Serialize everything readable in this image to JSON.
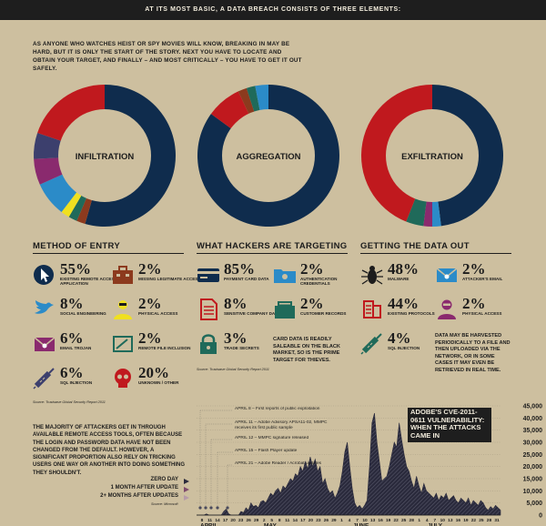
{
  "header": {
    "title": "AT ITS MOST BASIC, A DATA BREACH CONSISTS OF THREE ELEMENTS:"
  },
  "intro": "AS ANYONE WHO WATCHES HEIST OR SPY MOVIES WILL KNOW, BREAKING IN MAY BE HARD, BUT IT IS ONLY THE START OF THE STORY. NEXT YOU HAVE TO LOCATE AND OBTAIN YOUR TARGET, AND FINALLY – AND MOST CRITICALLY – YOU HAVE TO GET IT OUT SAFELY.",
  "columns": [
    {
      "title": "METHOD OF ENTRY",
      "pie_label": "INFILTRATION"
    },
    {
      "title": "WHAT HACKERS ARE TARGETING",
      "pie_label": "AGGREGATION"
    },
    {
      "title": "GETTING THE DATA OUT",
      "pie_label": "EXFILTRATION"
    }
  ],
  "chart_data": [
    {
      "type": "pie",
      "title": "INFILTRATION",
      "slices": [
        {
          "label": "EXISTING REMOTE ACCESS APPLICATION",
          "value": 55,
          "color": "#0f2c4d"
        },
        {
          "label": "MISSING LEGITIMATE ACCESS",
          "value": 2,
          "color": "#8c3a1e"
        },
        {
          "label": "REMOTE FILE INCLUSION",
          "value": 2,
          "color": "#1f6a5a"
        },
        {
          "label": "PHYSICAL ACCESS",
          "value": 2,
          "color": "#f0e020"
        },
        {
          "label": "SOCIAL ENGINEERING",
          "value": 8,
          "color": "#2b8bc8"
        },
        {
          "label": "EMAIL TROJAN",
          "value": 6,
          "color": "#8a2a6e"
        },
        {
          "label": "SQL INJECTION",
          "value": 6,
          "color": "#3c3f6d"
        },
        {
          "label": "UNKNOWN / OTHER",
          "value": 20,
          "color": "#c0191e"
        }
      ]
    },
    {
      "type": "pie",
      "title": "AGGREGATION",
      "slices": [
        {
          "label": "PAYMENT CARD DATA",
          "value": 85,
          "color": "#0f2c4d"
        },
        {
          "label": "SENSITIVE COMPANY DATA",
          "value": 8,
          "color": "#c0191e"
        },
        {
          "label": "AUTHENTICATION CREDENTIALS",
          "value": 2,
          "color": "#8c3a1e"
        },
        {
          "label": "CUSTOMER RECORDS",
          "value": 2,
          "color": "#1f6a5a"
        },
        {
          "label": "TRADE SECRETS",
          "value": 3,
          "color": "#2b8bc8"
        }
      ]
    },
    {
      "type": "pie",
      "title": "EXFILTRATION",
      "slices": [
        {
          "label": "MALWARE",
          "value": 48,
          "color": "#0f2c4d"
        },
        {
          "label": "ATTACKER'S EMAIL",
          "value": 2,
          "color": "#2b8bc8"
        },
        {
          "label": "PHYSICAL ACCESS",
          "value": 2,
          "color": "#8a2a6e"
        },
        {
          "label": "SQL INJECTION",
          "value": 4,
          "color": "#1f6a5a"
        },
        {
          "label": "EXISTING PROTOCOLS",
          "value": 44,
          "color": "#c0191e"
        }
      ]
    },
    {
      "type": "area",
      "title": "ADOBE'S CVE-2011-0611 VULNERABILITY: WHEN THE ATTACKS CAME IN",
      "ylim": [
        0,
        45000
      ],
      "yticks": [
        "0",
        "5,000",
        "10,000",
        "15,000",
        "20,000",
        "25,000",
        "30,000",
        "35,000",
        "40,000",
        "45,000"
      ],
      "xticks": [
        "8",
        "11",
        "14",
        "17",
        "20",
        "23",
        "26",
        "29",
        "2",
        "5",
        "8",
        "11",
        "14",
        "17",
        "20",
        "23",
        "26",
        "29",
        "1",
        "4",
        "7",
        "10",
        "13",
        "16",
        "19",
        "22",
        "25",
        "28",
        "1",
        "4",
        "7",
        "10",
        "13",
        "16",
        "19",
        "22",
        "25",
        "28",
        "31"
      ],
      "months": [
        "APRIL",
        "MAY",
        "JUNE",
        "JULY"
      ],
      "values": [
        0,
        0,
        0,
        0,
        500,
        0,
        0,
        0,
        0,
        0,
        0,
        1500,
        2500,
        500,
        0,
        0,
        0,
        0,
        1500,
        1000,
        3000,
        2000,
        5000,
        3500,
        4000,
        3000,
        5500,
        6000,
        5000,
        7000,
        9000,
        8000,
        10000,
        11000,
        9000,
        12000,
        11000,
        13000,
        15000,
        14000,
        17000,
        16000,
        20000,
        18000,
        22000,
        19000,
        24000,
        20000,
        23000,
        18000,
        20000,
        13000,
        15000,
        11000,
        9000,
        10000,
        7000,
        9000,
        12000,
        18000,
        26000,
        30000,
        20000,
        11000,
        5000,
        3000,
        4000,
        2500,
        4000,
        6000,
        20000,
        38000,
        42000,
        30000,
        22000,
        14000,
        15000,
        16000,
        20000,
        25000,
        30000,
        28000,
        38000,
        31000,
        25000,
        20000,
        18000,
        14000,
        11000,
        16000,
        12000,
        9000,
        13000,
        10000,
        9000,
        8000,
        7000,
        9000,
        6000,
        8000,
        7000,
        9000,
        6000,
        7000,
        8000,
        6000,
        5000,
        7000,
        6000,
        5000,
        7000,
        4000,
        6000,
        5000,
        4000,
        6000,
        5000,
        3000,
        2000,
        3500,
        2500,
        4000,
        3000,
        2000
      ],
      "events": [
        {
          "label": "APRIL 8 – First reports of public exploitation"
        },
        {
          "label": "APRIL 11 – Adobe Advisory APSA11-02, MMPC receives its first public sample"
        },
        {
          "label": "APRIL 12 – MMPC signature released"
        },
        {
          "label": "APRIL 15 – Flash Player update"
        },
        {
          "label": "APRIL 21 – Adobe Reader / Acrobat updates"
        }
      ],
      "legend": [
        {
          "label": "ZERO DAY",
          "color": "#2a2a3c"
        },
        {
          "label": "1 MONTH AFTER UPDATE",
          "color": "#7e4a6c"
        },
        {
          "label": "2+ MONTHS AFTER UPDATES",
          "color": "#b69aa8"
        }
      ]
    }
  ],
  "stats": {
    "entry": [
      {
        "pct": "55%",
        "label": "EXISTING REMOTE ACCESS APPLICATION",
        "icon": "cursor-icon"
      },
      {
        "pct": "2%",
        "label": "MISSING LEGITIMATE ACCESS",
        "icon": "briefcase-icon"
      },
      {
        "pct": "8%",
        "label": "SOCIAL ENGINEERING",
        "icon": "twitter-bird-icon"
      },
      {
        "pct": "2%",
        "label": "PHYSICAL ACCESS",
        "icon": "person-icon"
      },
      {
        "pct": "6%",
        "label": "EMAIL TROJAN",
        "icon": "pirate-envelope-icon"
      },
      {
        "pct": "2%",
        "label": "REMOTE FILE INCLUSION",
        "icon": "terminal-icon"
      },
      {
        "pct": "6%",
        "label": "SQL INJECTION",
        "icon": "syringe-icon"
      },
      {
        "pct": "20%",
        "label": "UNKNOWN / OTHER",
        "icon": "skull-icon"
      }
    ],
    "target": [
      {
        "pct": "85%",
        "label": "PAYMENT CARD DATA",
        "icon": "card-icon"
      },
      {
        "pct": "2%",
        "label": "AUTHENTICATION CREDENTIALS",
        "icon": "folder-icon"
      },
      {
        "pct": "8%",
        "label": "SENSITIVE COMPANY DATA",
        "icon": "document-icon"
      },
      {
        "pct": "2%",
        "label": "CUSTOMER RECORDS",
        "icon": "card-file-icon"
      },
      {
        "pct": "3%",
        "label": "TRADE SECRETS",
        "icon": "padlock-icon"
      }
    ],
    "out": [
      {
        "pct": "48%",
        "label": "MALWARE",
        "icon": "bug-icon"
      },
      {
        "pct": "2%",
        "label": "ATTACKER'S EMAIL",
        "icon": "pirate-envelope-icon"
      },
      {
        "pct": "44%",
        "label": "EXISTING PROTOCOLS",
        "icon": "protocol-icon"
      },
      {
        "pct": "2%",
        "label": "PHYSICAL ACCESS",
        "icon": "masked-person-icon"
      },
      {
        "pct": "4%",
        "label": "SQL INJECTION",
        "icon": "syringe-icon"
      }
    ]
  },
  "notes": {
    "card_data": "CARD DATA IS READILY SALEABLE ON THE BLACK MARKET, SO IS THE PRIME TARGET FOR THIEVES.",
    "harvest": "DATA MAY BE HARVESTED PERIODICALLY TO A FILE AND THEN UPLOADED VIA THE NETWORK, OR IN SOME CASES IT MAY EVEN BE RETRIEVED IN REAL TIME.",
    "story": "THE MAJORITY OF ATTACKERS GET IN THROUGH AVAILABLE REMOTE ACCESS TOOLS, OFTEN BECAUSE THE LOGIN AND PASSWORD DATA HAVE NOT BEEN CHANGED FROM THE DEFAULT. HOWEVER, A SIGNIFICANT PROPORTION ALSO RELY ON TRICKING USERS ONE WAY OR ANOTHER INTO DOING SOMETHING THEY SHOULDN'T.",
    "source1": "Source: Trustwave Global Security Report 2011",
    "source2": "Source: Trustwave Global Security Report 2011",
    "source3": "Source: Microsoft"
  }
}
